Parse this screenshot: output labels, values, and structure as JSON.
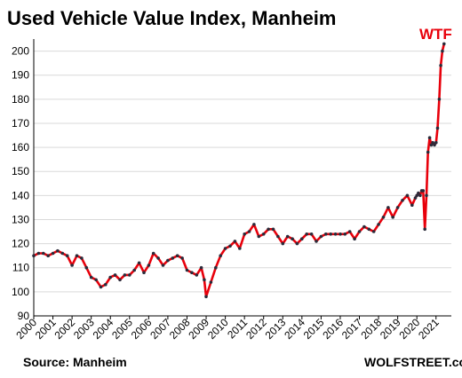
{
  "chart_data": {
    "type": "line",
    "title": "Used Vehicle Value Index, Manheim",
    "source": "Source: Manheim",
    "credit": "WOLFSTREET.com",
    "annotation": "WTF",
    "xlabel": "",
    "ylabel": "",
    "ylim": [
      90,
      205
    ],
    "yticks": [
      90,
      100,
      110,
      120,
      130,
      140,
      150,
      160,
      170,
      180,
      190,
      200
    ],
    "xticks": [
      "2000",
      "2001",
      "2002",
      "2003",
      "2004",
      "2005",
      "2006",
      "2007",
      "2008",
      "2009",
      "2010",
      "2011",
      "2012",
      "2013",
      "2014",
      "2015",
      "2016",
      "2017",
      "2018",
      "2019",
      "2020",
      "2021"
    ],
    "xlim": [
      2000.0,
      2021.8
    ],
    "grid": "horizontal",
    "colors": {
      "line": "#e8000b",
      "points": "#2b2b3a",
      "annotation": "#e8000b"
    },
    "series": [
      {
        "x": [
          2000.0,
          2000.25,
          2000.5,
          2000.75,
          2001.0,
          2001.25,
          2001.5,
          2001.75,
          2002.0,
          2002.25,
          2002.5,
          2002.75,
          2003.0,
          2003.25,
          2003.5,
          2003.75,
          2004.0,
          2004.25,
          2004.5,
          2004.75,
          2005.0,
          2005.25,
          2005.5,
          2005.75,
          2006.0,
          2006.25,
          2006.5,
          2006.75,
          2007.0,
          2007.25,
          2007.5,
          2007.75,
          2008.0,
          2008.25,
          2008.5,
          2008.75,
          2008.9,
          2009.0,
          2009.25,
          2009.5,
          2009.75,
          2010.0,
          2010.25,
          2010.5,
          2010.75,
          2011.0,
          2011.25,
          2011.5,
          2011.75,
          2012.0,
          2012.25,
          2012.5,
          2012.75,
          2013.0,
          2013.25,
          2013.5,
          2013.75,
          2014.0,
          2014.25,
          2014.5,
          2014.75,
          2015.0,
          2015.25,
          2015.5,
          2015.75,
          2016.0,
          2016.25,
          2016.5,
          2016.75,
          2017.0,
          2017.25,
          2017.5,
          2017.75,
          2018.0,
          2018.25,
          2018.5,
          2018.75,
          2019.0,
          2019.25,
          2019.5,
          2019.75,
          2019.92,
          2020.0,
          2020.08,
          2020.17,
          2020.25,
          2020.33,
          2020.42,
          2020.5,
          2020.58,
          2020.67,
          2020.75,
          2020.83,
          2020.92,
          2021.0,
          2021.08,
          2021.17,
          2021.25,
          2021.33,
          2021.42
        ],
        "y": [
          115,
          116,
          116,
          115,
          116,
          117,
          116,
          115,
          111,
          115,
          114,
          110,
          106,
          105,
          102,
          103,
          106,
          107,
          105,
          107,
          107,
          109,
          112,
          108,
          111,
          116,
          114,
          111,
          113,
          114,
          115,
          114,
          109,
          108,
          107,
          110,
          105,
          98,
          104,
          110,
          115,
          118,
          119,
          121,
          118,
          124,
          125,
          128,
          123,
          124,
          126,
          126,
          123,
          120,
          123,
          122,
          120,
          122,
          124,
          124,
          121,
          123,
          124,
          124,
          124,
          124,
          124,
          125,
          122,
          125,
          127,
          126,
          125,
          128,
          131,
          135,
          131,
          135,
          138,
          140,
          136,
          139,
          140,
          141,
          140,
          142,
          142,
          126,
          140,
          158,
          164,
          161,
          162,
          161,
          162,
          168,
          180,
          194,
          200,
          203
        ]
      }
    ]
  }
}
